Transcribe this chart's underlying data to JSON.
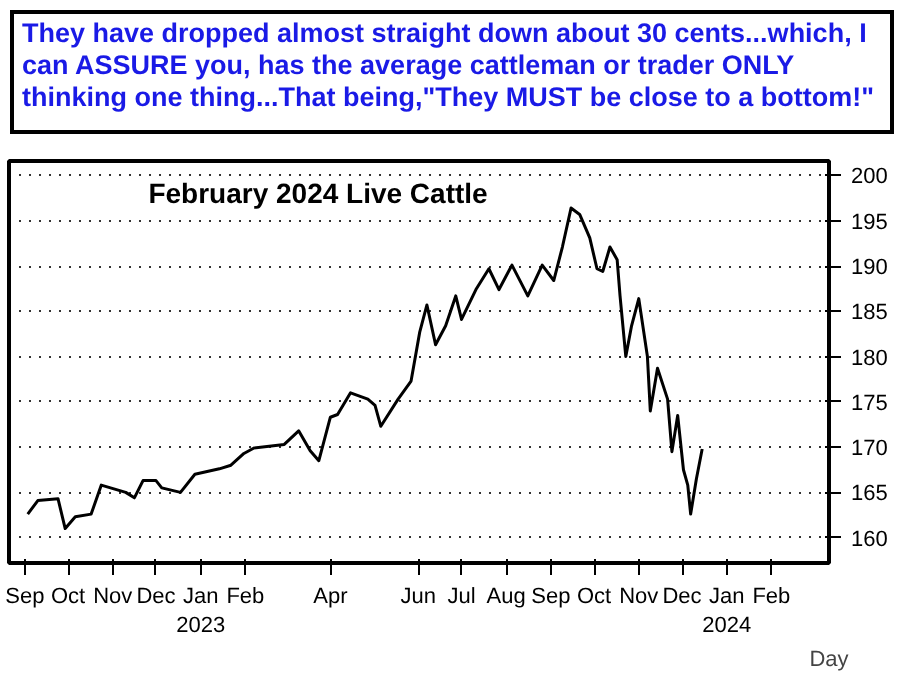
{
  "chart_data": {
    "type": "line",
    "title": "They have dropped almost straight down about 30 cents...which, I can ASSURE you, has the average cattleman or trader ONLY thinking one thing...That being,\"They MUST be close to a bottom!\"",
    "subtitle": "February 2024 Live Cattle",
    "xlabel": "Day",
    "x": [
      "2022-09-03",
      "2022-09-10",
      "2022-09-24",
      "2022-09-29",
      "2022-10-06",
      "2022-10-17",
      "2022-10-24",
      "2022-11-10",
      "2022-11-16",
      "2022-11-22",
      "2022-12-01",
      "2022-12-05",
      "2022-12-18",
      "2022-12-28",
      "2023-01-14",
      "2023-01-22",
      "2023-01-31",
      "2023-02-07",
      "2023-02-28",
      "2023-03-10",
      "2023-03-18",
      "2023-03-24",
      "2023-04-01",
      "2023-04-06",
      "2023-04-15",
      "2023-04-27",
      "2023-05-02",
      "2023-05-06",
      "2023-05-18",
      "2023-05-27",
      "2023-06-02",
      "2023-06-07",
      "2023-06-13",
      "2023-06-20",
      "2023-06-27",
      "2023-07-01",
      "2023-07-11",
      "2023-07-20",
      "2023-07-27",
      "2023-08-05",
      "2023-08-16",
      "2023-08-26",
      "2023-09-03",
      "2023-09-09",
      "2023-09-15",
      "2023-09-21",
      "2023-09-28",
      "2023-10-03",
      "2023-10-07",
      "2023-10-12",
      "2023-10-17",
      "2023-10-19",
      "2023-10-23",
      "2023-10-27",
      "2023-11-01",
      "2023-11-07",
      "2023-11-09",
      "2023-11-14",
      "2023-11-21",
      "2023-11-24",
      "2023-11-28",
      "2023-12-02",
      "2023-12-05",
      "2023-12-07",
      "2023-12-11",
      "2023-12-15"
    ],
    "series": [
      {
        "color": "#000000",
        "values": [
          162.6,
          164.1,
          164.3,
          161.0,
          162.3,
          162.6,
          165.8,
          165.0,
          164.4,
          166.3,
          166.3,
          165.5,
          165.0,
          167.0,
          167.6,
          168.0,
          169.3,
          169.9,
          170.3,
          171.8,
          169.6,
          168.5,
          173.3,
          173.6,
          176.0,
          175.3,
          174.6,
          172.3,
          175.3,
          177.3,
          182.7,
          185.7,
          181.3,
          183.4,
          186.7,
          184.1,
          187.4,
          189.7,
          187.4,
          190.1,
          186.7,
          190.1,
          188.4,
          192.1,
          196.4,
          195.7,
          193.1,
          189.7,
          189.4,
          192.1,
          190.7,
          186.7,
          180.0,
          183.4,
          186.4,
          180.0,
          174.0,
          178.7,
          175.3,
          169.5,
          173.5,
          167.5,
          165.8,
          162.6,
          166.5,
          169.8
        ]
      }
    ],
    "xlim": [
      "2022-08-21",
      "2024-03-12"
    ],
    "xticks": [
      {
        "value": "2022-09-01",
        "label": "Sep"
      },
      {
        "value": "2022-10-01",
        "label": "Oct"
      },
      {
        "value": "2022-11-01",
        "label": "Nov"
      },
      {
        "value": "2022-12-01",
        "label": "Dec"
      },
      {
        "value": "2023-01-01",
        "label": "Jan\n2023"
      },
      {
        "value": "2023-02-01",
        "label": "Feb"
      },
      {
        "value": "2023-04-01",
        "label": "Apr"
      },
      {
        "value": "2023-06-01",
        "label": "Jun"
      },
      {
        "value": "2023-07-01",
        "label": "Jul"
      },
      {
        "value": "2023-08-01",
        "label": "Aug"
      },
      {
        "value": "2023-09-01",
        "label": "Sep"
      },
      {
        "value": "2023-10-01",
        "label": "Oct"
      },
      {
        "value": "2023-11-01",
        "label": "Nov"
      },
      {
        "value": "2023-12-01",
        "label": "Dec"
      },
      {
        "value": "2024-01-01",
        "label": "Jan\n2024"
      },
      {
        "value": "2024-02-01",
        "label": "Feb"
      }
    ],
    "ylim": [
      157.2,
      201.6
    ],
    "yticks": [
      160,
      165,
      170,
      175,
      180,
      185,
      190,
      195,
      200
    ],
    "grid": true,
    "line_style": "solid",
    "marker": "none"
  }
}
